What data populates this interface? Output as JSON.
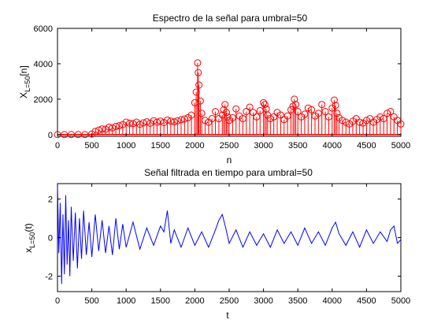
{
  "figure": {
    "background": "#ffffff"
  },
  "chart_data": [
    {
      "type": "stem",
      "title": "Espectro de la señal para umbral=50",
      "xlabel": "n",
      "ylabel": {
        "main": "X",
        "sub": "L=50",
        "suffix": "[n]"
      },
      "xlim": [
        0,
        5000
      ],
      "ylim": [
        -100,
        6000
      ],
      "xticks": [
        0,
        500,
        1000,
        1500,
        2000,
        2500,
        3000,
        3500,
        4000,
        4500,
        5000
      ],
      "yticks": [
        0,
        2000,
        4000,
        6000
      ],
      "grid": false,
      "marker": "circle",
      "color": "#ff0000",
      "series": [
        {
          "x": [
            0,
            100,
            200,
            300,
            400,
            500,
            550,
            600,
            650,
            700,
            750,
            800,
            850,
            900,
            950,
            1000,
            1050,
            1100,
            1150,
            1200,
            1250,
            1300,
            1350,
            1400,
            1450,
            1500,
            1550,
            1600,
            1650,
            1700,
            1750,
            1800,
            1850,
            1900,
            1950,
            2000,
            2020,
            2040,
            2050,
            2060,
            2080,
            2100,
            2150,
            2200,
            2250,
            2300,
            2350,
            2400,
            2420,
            2440,
            2460,
            2480,
            2500,
            2550,
            2600,
            2650,
            2700,
            2750,
            2800,
            2850,
            2900,
            2950,
            3000,
            3020,
            3040,
            3060,
            3100,
            3150,
            3200,
            3250,
            3300,
            3350,
            3400,
            3430,
            3450,
            3470,
            3500,
            3550,
            3600,
            3650,
            3700,
            3750,
            3800,
            3850,
            3900,
            3950,
            4000,
            4030,
            4050,
            4070,
            4100,
            4150,
            4200,
            4250,
            4300,
            4350,
            4400,
            4450,
            4500,
            4550,
            4600,
            4650,
            4700,
            4750,
            4800,
            4850,
            4900,
            4950,
            5000
          ],
          "y": [
            0,
            0,
            0,
            0,
            0,
            30,
            180,
            250,
            320,
            300,
            420,
            380,
            460,
            500,
            560,
            700,
            640,
            620,
            700,
            580,
            660,
            720,
            640,
            780,
            700,
            760,
            680,
            820,
            760,
            720,
            780,
            840,
            880,
            950,
            1100,
            1800,
            2400,
            4050,
            3500,
            2800,
            1900,
            1200,
            800,
            700,
            900,
            1300,
            900,
            1100,
            1400,
            1700,
            1250,
            1000,
            800,
            950,
            1450,
            1050,
            900,
            1300,
            1550,
            1250,
            1000,
            1350,
            1800,
            1700,
            1450,
            1100,
            900,
            1000,
            1250,
            1100,
            850,
            1050,
            1400,
            1600,
            2000,
            1700,
            1300,
            1000,
            1150,
            1500,
            1400,
            1050,
            1200,
            1700,
            1300,
            1000,
            1500,
            1950,
            1650,
            1200,
            950,
            800,
            700,
            600,
            750,
            900,
            700,
            650,
            800,
            900,
            700,
            850,
            1000,
            900,
            1200,
            1300,
            1000,
            800,
            600
          ]
        }
      ]
    },
    {
      "type": "line",
      "title": "Señal filtrada en tiempo para umbral=50",
      "xlabel": "t",
      "ylabel": {
        "main": "x",
        "sub": "L=50",
        "suffix": "(t)"
      },
      "xlim": [
        0,
        5000
      ],
      "ylim": [
        -2.8,
        2.8
      ],
      "xticks": [
        0,
        500,
        1000,
        1500,
        2000,
        2500,
        3000,
        3500,
        4000,
        4500,
        5000
      ],
      "yticks": [
        -2,
        0,
        2
      ],
      "grid": false,
      "color": "#0000ff",
      "series": [
        {
          "x": [
            0,
            20,
            40,
            60,
            80,
            100,
            120,
            140,
            160,
            180,
            200,
            230,
            260,
            290,
            320,
            350,
            380,
            420,
            460,
            500,
            550,
            600,
            650,
            700,
            750,
            800,
            850,
            900,
            950,
            1000,
            1100,
            1200,
            1300,
            1400,
            1500,
            1550,
            1600,
            1650,
            1700,
            1800,
            1900,
            2000,
            2100,
            2200,
            2300,
            2350,
            2400,
            2450,
            2500,
            2600,
            2700,
            2800,
            2900,
            3000,
            3100,
            3200,
            3300,
            3400,
            3500,
            3600,
            3700,
            3800,
            3900,
            4000,
            4050,
            4100,
            4200,
            4300,
            4400,
            4500,
            4600,
            4700,
            4800,
            4850,
            4900,
            4950,
            5000
          ],
          "y": [
            2.7,
            -0.8,
            1.8,
            -2.4,
            1.2,
            -1.9,
            2.2,
            -1.4,
            0.9,
            -2.0,
            1.6,
            -1.2,
            1.3,
            -1.6,
            1.0,
            -1.1,
            1.4,
            -0.9,
            0.8,
            -1.0,
            1.2,
            -0.7,
            0.9,
            -0.8,
            0.6,
            -0.9,
            1.0,
            -0.6,
            0.7,
            -0.5,
            0.8,
            -0.6,
            0.5,
            -0.4,
            0.6,
            0.3,
            1.4,
            -0.3,
            0.4,
            -0.5,
            0.5,
            -0.4,
            0.3,
            -0.5,
            0.4,
            0.9,
            1.2,
            0.5,
            -0.3,
            0.4,
            -0.5,
            0.3,
            -0.4,
            0.2,
            -0.5,
            0.4,
            -0.3,
            0.3,
            -0.4,
            0.5,
            -0.3,
            0.3,
            -0.4,
            0.5,
            0.8,
            0.2,
            -0.4,
            0.3,
            -0.5,
            0.4,
            -0.3,
            0.3,
            -0.2,
            0.4,
            0.6,
            -0.3,
            -0.1
          ]
        }
      ]
    }
  ]
}
